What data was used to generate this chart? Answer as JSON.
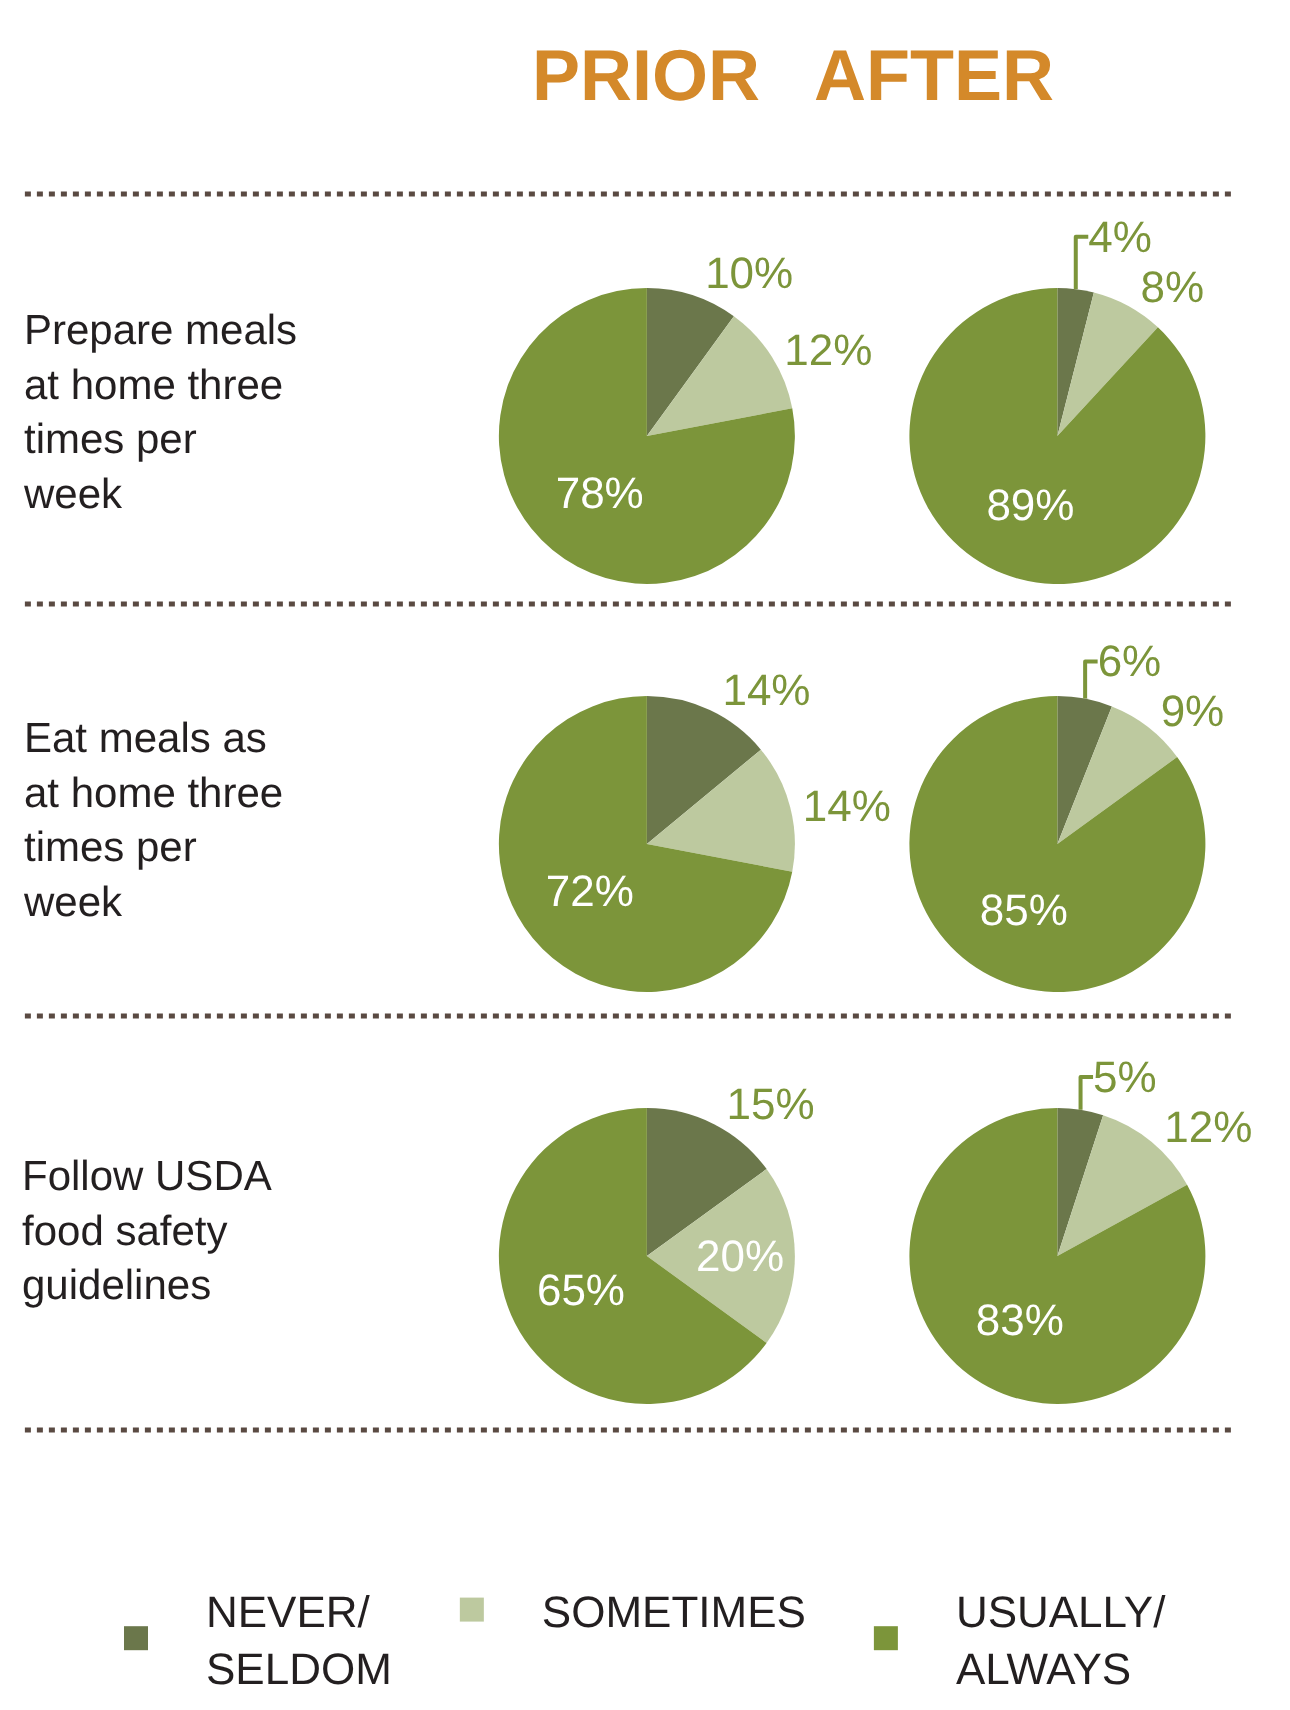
{
  "chart_data": [
    {
      "type": "pie",
      "title": "PRIOR",
      "ylabel": "Prepare meals\nat home three\ntimes per\nweek",
      "categories": [
        "NEVER/\nSELDOM",
        "SOMETIMES",
        "USUALLY/\nALWAYS"
      ],
      "values": [
        10,
        12,
        78
      ],
      "value_labels": [
        "10%",
        "12%",
        "78%"
      ],
      "colors": [
        "#6b774b",
        "#bdc99f",
        "#7c953a"
      ],
      "legend": "bottom"
    },
    {
      "type": "pie",
      "title": "AFTER",
      "values": [
        4,
        8,
        89
      ],
      "value_labels": [
        "4%",
        "8%",
        "89%"
      ],
      "colors": [
        "#6b774b",
        "#bdc99f",
        "#7c953a"
      ]
    },
    {
      "type": "pie",
      "ylabel": "Eat meals as\nat home three\ntimes per\nweek",
      "values": [
        14,
        14,
        72
      ],
      "value_labels": [
        "14%",
        "14%",
        "72%"
      ],
      "colors": [
        "#6b774b",
        "#bdc99f",
        "#7c953a"
      ]
    },
    {
      "type": "pie",
      "values": [
        6,
        9,
        85
      ],
      "value_labels": [
        "6%",
        "9%",
        "85%"
      ],
      "colors": [
        "#6b774b",
        "#bdc99f",
        "#7c953a"
      ]
    },
    {
      "type": "pie",
      "ylabel": "Follow USDA\nfood safety\nguidelines",
      "values": [
        15,
        20,
        65
      ],
      "value_labels": [
        "15%",
        "20%",
        "65%"
      ],
      "colors": [
        "#6b774b",
        "#bdc99f",
        "#7c953a"
      ]
    },
    {
      "type": "pie",
      "values": [
        5,
        12,
        83
      ],
      "value_labels": [
        "5%",
        "12%",
        "83%"
      ],
      "colors": [
        "#6b774b",
        "#bdc99f",
        "#7c953a"
      ]
    }
  ]
}
